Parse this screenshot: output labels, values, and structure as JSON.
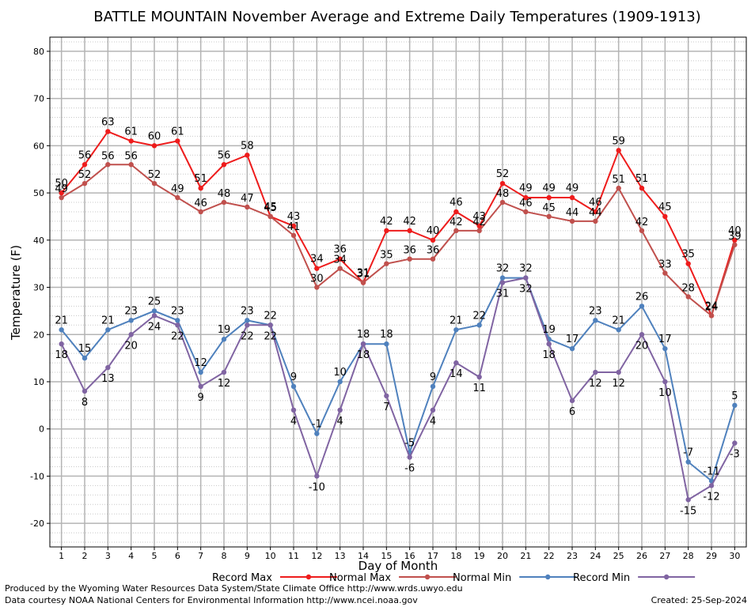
{
  "chart_data": {
    "type": "line",
    "title": "BATTLE MOUNTAIN November Average and Extreme Daily Temperatures (1909-1913)",
    "xlabel": "Day of Month",
    "ylabel": "Temperature (F)",
    "xlim": [
      0.5,
      30.5
    ],
    "ylim": [
      -25,
      83
    ],
    "y_ticks": [
      -20,
      -10,
      0,
      10,
      20,
      30,
      40,
      50,
      60,
      70,
      80
    ],
    "x": [
      1,
      2,
      3,
      4,
      5,
      6,
      7,
      8,
      9,
      10,
      11,
      12,
      13,
      14,
      15,
      16,
      17,
      18,
      19,
      20,
      21,
      22,
      23,
      24,
      25,
      26,
      27,
      28,
      29,
      30
    ],
    "grid": true,
    "legend_position": "bottom",
    "series": [
      {
        "name": "Record Max",
        "color": "#ee1c1c",
        "values": [
          50,
          56,
          63,
          61,
          60,
          61,
          51,
          56,
          58,
          45,
          43,
          34,
          36,
          31,
          42,
          42,
          40,
          46,
          43,
          52,
          49,
          49,
          49,
          46,
          59,
          51,
          45,
          35,
          24,
          40
        ]
      },
      {
        "name": "Normal Max",
        "color": "#c0504d",
        "values": [
          49,
          52,
          56,
          56,
          52,
          49,
          46,
          48,
          47,
          45,
          41,
          30,
          34,
          31,
          35,
          36,
          36,
          42,
          42,
          48,
          46,
          45,
          44,
          44,
          51,
          42,
          33,
          28,
          24,
          39
        ]
      },
      {
        "name": "Normal Min",
        "color": "#4f81bd",
        "values": [
          21,
          15,
          21,
          23,
          25,
          23,
          12,
          19,
          23,
          22,
          9,
          -1,
          10,
          18,
          18,
          -5,
          9,
          21,
          22,
          32,
          32,
          19,
          17,
          23,
          21,
          26,
          17,
          -7,
          -11,
          5
        ]
      },
      {
        "name": "Record Min",
        "color": "#8064a2",
        "values": [
          18,
          8,
          13,
          20,
          24,
          22,
          9,
          12,
          22,
          22,
          4,
          -10,
          4,
          18,
          7,
          -6,
          4,
          14,
          11,
          31,
          32,
          18,
          6,
          12,
          12,
          20,
          10,
          -15,
          -12,
          -3
        ]
      }
    ]
  },
  "footer": {
    "line1": "Produced by the Wyoming Water Resources Data System/State Climate Office http://www.wrds.uwyo.edu",
    "line2": "Data courtesy NOAA National Centers for Environmental Information http://www.ncei.noaa.gov",
    "created": "Created:  25-Sep-2024"
  }
}
